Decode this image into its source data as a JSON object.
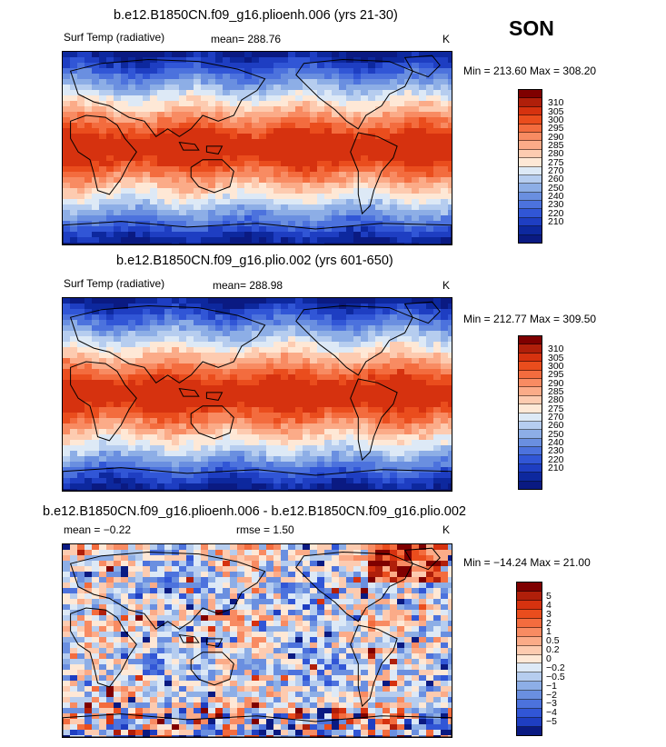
{
  "season": "SON",
  "units": "K",
  "colors": {
    "temp_scale": [
      "#7f0000",
      "#b01f0a",
      "#d6320f",
      "#ea4d1d",
      "#f36c3e",
      "#f88b62",
      "#fbab88",
      "#fdcbb0",
      "#fee8d6",
      "#dde9f6",
      "#b6cdef",
      "#8daee6",
      "#6a8fe0",
      "#4c72dd",
      "#3156d6",
      "#1e3ec2",
      "#0d289e",
      "#0a1a82"
    ],
    "diff_scale": [
      "#7f0000",
      "#b01f0a",
      "#d6320f",
      "#ea4d1d",
      "#f36c3e",
      "#f88b62",
      "#fbab88",
      "#fdcbb0",
      "#fee8d6",
      "#dde9f6",
      "#b6cdef",
      "#8daee6",
      "#6a8fe0",
      "#4c72dd",
      "#3156d6",
      "#1e3ec2",
      "#0a1a82"
    ],
    "land_outline": "#000000"
  },
  "panels": [
    {
      "title": "b.e12.B1850CN.f09_g16.plioenh.006 (yrs 21-30)",
      "variable": "Surf Temp (radiative)",
      "mean_text": "mean= 288.76",
      "units": "K",
      "minmax": "Min = 213.60 Max = 308.20",
      "colorbar_labels": [
        "310",
        "305",
        "300",
        "295",
        "290",
        "285",
        "280",
        "275",
        "270",
        "260",
        "250",
        "240",
        "230",
        "220",
        "210"
      ],
      "kind": "field"
    },
    {
      "title": "b.e12.B1850CN.f09_g16.plio.002 (yrs 601-650)",
      "variable": "Surf Temp (radiative)",
      "mean_text": "mean= 288.98",
      "units": "K",
      "minmax": "Min = 212.77 Max = 309.50",
      "colorbar_labels": [
        "310",
        "305",
        "300",
        "295",
        "290",
        "285",
        "280",
        "275",
        "270",
        "260",
        "250",
        "240",
        "230",
        "220",
        "210"
      ],
      "kind": "field"
    },
    {
      "title": "b.e12.B1850CN.f09_g16.plioenh.006 - b.e12.B1850CN.f09_g16.plio.002",
      "mean_text": "mean =  −0.22",
      "rmse_text": "rmse =   1.50",
      "units": "K",
      "minmax": "Min = −14.24 Max =  21.00",
      "colorbar_labels": [
        "5",
        "4",
        "3",
        "2",
        "1",
        "0.5",
        "0.2",
        "0",
        "−0.2",
        "−0.5",
        "−1",
        "−2",
        "−3",
        "−4",
        "−5"
      ],
      "kind": "diff"
    }
  ]
}
